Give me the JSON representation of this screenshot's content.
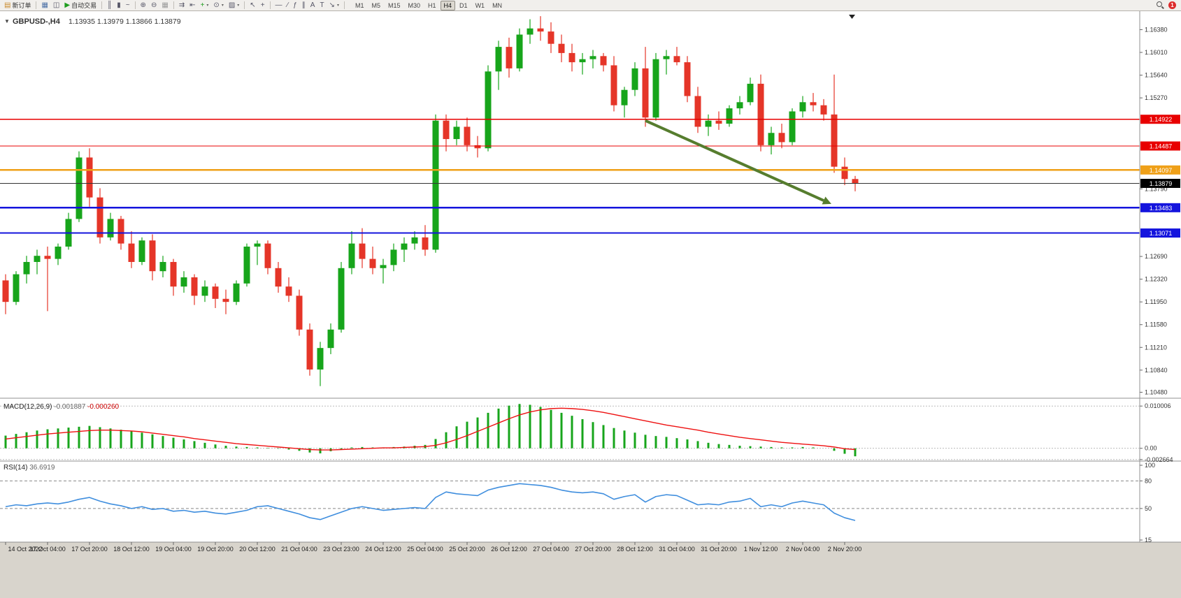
{
  "toolbar": {
    "items": [
      {
        "name": "new-order-button",
        "icon": "▤",
        "icon_color": "#c98a2b",
        "label": "新订单"
      },
      {
        "sep": true
      },
      {
        "name": "charts-window-button",
        "icon": "▦",
        "icon_color": "#4a6fa5"
      },
      {
        "name": "profiles-button",
        "icon": "◫",
        "icon_color": "#556"
      },
      {
        "name": "auto-trading-button",
        "icon": "▶",
        "icon_color": "#1f9d1f",
        "label": "自动交易"
      },
      {
        "sep": true
      },
      {
        "name": "bar-chart-type-button",
        "icon": "║",
        "icon_color": "#556"
      },
      {
        "name": "candle-chart-type-button",
        "icon": "▮",
        "icon_color": "#556"
      },
      {
        "name": "line-chart-type-button",
        "icon": "~",
        "icon_color": "#556"
      },
      {
        "sep": true
      },
      {
        "name": "zoom-in-button",
        "icon": "⊕",
        "icon_color": "#556"
      },
      {
        "name": "zoom-out-button",
        "icon": "⊖",
        "icon_color": "#556"
      },
      {
        "name": "grid-button",
        "icon": "▦",
        "icon_color": "#999"
      },
      {
        "sep": true
      },
      {
        "name": "auto-scroll-button",
        "icon": "⇉",
        "icon_color": "#556"
      },
      {
        "name": "chart-shift-button",
        "icon": "⇤",
        "icon_color": "#556"
      },
      {
        "name": "indicators-button",
        "icon": "+",
        "icon_color": "#1f9d1f",
        "caret": true
      },
      {
        "name": "periods-button",
        "icon": "⊙",
        "icon_color": "#556",
        "caret": true
      },
      {
        "name": "template-button",
        "icon": "▨",
        "icon_color": "#556",
        "caret": true
      },
      {
        "sep": true
      },
      {
        "name": "cursor-button",
        "icon": "↖",
        "icon_color": "#556"
      },
      {
        "name": "crosshair-button",
        "icon": "+",
        "icon_color": "#556"
      },
      {
        "sep": true
      },
      {
        "name": "hline-tool-button",
        "icon": "—",
        "icon_color": "#556"
      },
      {
        "name": "trendline-tool-button",
        "icon": "∕",
        "icon_color": "#556"
      },
      {
        "name": "fibo-tool-button",
        "icon": "ƒ",
        "icon_color": "#556"
      },
      {
        "name": "channel-tool-button",
        "icon": "∥",
        "icon_color": "#556"
      },
      {
        "name": "text-tool-button",
        "icon": "A",
        "icon_color": "#556"
      },
      {
        "name": "label-tool-button",
        "icon": "T",
        "icon_color": "#556"
      },
      {
        "name": "arrows-tool-button",
        "icon": "↘",
        "icon_color": "#556",
        "caret": true
      },
      {
        "sep": true
      }
    ],
    "timeframes": {
      "options": [
        "M1",
        "M5",
        "M15",
        "M30",
        "H1",
        "H4",
        "D1",
        "W1",
        "MN"
      ],
      "active": "H4"
    },
    "notification_count": "1"
  },
  "chart_data": [
    {
      "type": "candlestick",
      "title": "GBPUSD-,H4",
      "ohlc_text": "1.13935 1.13979 1.13866 1.13879",
      "timeframe": "H4",
      "ylim": [
        1.1044,
        1.1659
      ],
      "y_ticks": [
        "1.16380",
        "1.16010",
        "1.15640",
        "1.15270",
        "1.13790",
        "1.12690",
        "1.12320",
        "1.11950",
        "1.11580",
        "1.11210",
        "1.10840",
        "1.10480"
      ],
      "x_labels": [
        "14 Oct 2022",
        "17 Oct 04:00",
        "17 Oct 20:00",
        "18 Oct 12:00",
        "19 Oct 04:00",
        "19 Oct 20:00",
        "20 Oct 12:00",
        "21 Oct 04:00",
        "23 Oct 23:00",
        "24 Oct 12:00",
        "25 Oct 04:00",
        "25 Oct 20:00",
        "26 Oct 12:00",
        "27 Oct 04:00",
        "27 Oct 20:00",
        "28 Oct 12:00",
        "31 Oct 04:00",
        "31 Oct 20:00",
        "1 Nov 12:00",
        "2 Nov 04:00",
        "2 Nov 20:00"
      ],
      "colors": {
        "up": "#17a51b",
        "down": "#e53528"
      },
      "current_price": {
        "value": 1.13879,
        "label": "1.13879",
        "color": "#000000"
      },
      "levels": [
        {
          "price": 1.14922,
          "label": "1.14922",
          "color": "#e80000",
          "width": 1.3
        },
        {
          "price": 1.14487,
          "label": "1.14487",
          "color": "#e80000",
          "width": 1.3
        },
        {
          "price": 1.14097,
          "label": "1.14097",
          "color": "#efa018",
          "width": 2.2
        },
        {
          "price": 1.13483,
          "label": "1.13483",
          "color": "#1414dd",
          "width": 2.2
        },
        {
          "price": 1.13071,
          "label": "1.13071",
          "color": "#1414dd",
          "width": 2.2
        }
      ],
      "annotations": [
        {
          "type": "trend-arrow",
          "from_bar": 61,
          "from_price": 1.149,
          "to_bar": 78,
          "to_price": 1.136,
          "color": "#567d2e"
        }
      ],
      "candles": [
        [
          1.123,
          1.124,
          1.1175,
          1.1195
        ],
        [
          1.1195,
          1.1245,
          1.119,
          1.124
        ],
        [
          1.124,
          1.127,
          1.1225,
          1.126
        ],
        [
          1.126,
          1.128,
          1.124,
          1.127
        ],
        [
          1.127,
          1.1285,
          1.118,
          1.1265
        ],
        [
          1.1265,
          1.129,
          1.1255,
          1.1285
        ],
        [
          1.1285,
          1.134,
          1.128,
          1.133
        ],
        [
          1.133,
          1.144,
          1.1325,
          1.143
        ],
        [
          1.143,
          1.1445,
          1.135,
          1.1365
        ],
        [
          1.1365,
          1.138,
          1.129,
          1.13
        ],
        [
          1.13,
          1.134,
          1.1295,
          1.133
        ],
        [
          1.133,
          1.1335,
          1.128,
          1.129
        ],
        [
          1.129,
          1.131,
          1.125,
          1.126
        ],
        [
          1.126,
          1.13,
          1.1255,
          1.1295
        ],
        [
          1.1295,
          1.1305,
          1.123,
          1.1245
        ],
        [
          1.1245,
          1.127,
          1.1235,
          1.126
        ],
        [
          1.126,
          1.1265,
          1.1205,
          1.122
        ],
        [
          1.122,
          1.1245,
          1.121,
          1.1235
        ],
        [
          1.1235,
          1.124,
          1.119,
          1.1205
        ],
        [
          1.1205,
          1.123,
          1.1195,
          1.122
        ],
        [
          1.122,
          1.1225,
          1.1185,
          1.12
        ],
        [
          1.12,
          1.1215,
          1.1175,
          1.1195
        ],
        [
          1.1195,
          1.123,
          1.119,
          1.1225
        ],
        [
          1.1225,
          1.129,
          1.122,
          1.1285
        ],
        [
          1.1285,
          1.1295,
          1.1255,
          1.129
        ],
        [
          1.129,
          1.1295,
          1.124,
          1.125
        ],
        [
          1.125,
          1.126,
          1.121,
          1.122
        ],
        [
          1.122,
          1.1235,
          1.1195,
          1.1205
        ],
        [
          1.1205,
          1.1215,
          1.114,
          1.115
        ],
        [
          1.115,
          1.116,
          1.1075,
          1.1085
        ],
        [
          1.1085,
          1.113,
          1.1058,
          1.112
        ],
        [
          1.112,
          1.116,
          1.111,
          1.115
        ],
        [
          1.115,
          1.126,
          1.1145,
          1.125
        ],
        [
          1.125,
          1.131,
          1.124,
          1.129
        ],
        [
          1.129,
          1.1315,
          1.125,
          1.1265
        ],
        [
          1.1265,
          1.1285,
          1.124,
          1.125
        ],
        [
          1.125,
          1.1265,
          1.1225,
          1.1255
        ],
        [
          1.1255,
          1.129,
          1.1245,
          1.128
        ],
        [
          1.128,
          1.13,
          1.126,
          1.129
        ],
        [
          1.129,
          1.131,
          1.128,
          1.13
        ],
        [
          1.13,
          1.132,
          1.127,
          1.128
        ],
        [
          1.128,
          1.15,
          1.1275,
          1.149
        ],
        [
          1.149,
          1.15,
          1.144,
          1.146
        ],
        [
          1.146,
          1.149,
          1.145,
          1.148
        ],
        [
          1.148,
          1.1495,
          1.144,
          1.145
        ],
        [
          1.145,
          1.1465,
          1.143,
          1.1445
        ],
        [
          1.1445,
          1.158,
          1.144,
          1.157
        ],
        [
          1.157,
          1.162,
          1.154,
          1.161
        ],
        [
          1.161,
          1.1625,
          1.156,
          1.1575
        ],
        [
          1.1575,
          1.164,
          1.157,
          1.163
        ],
        [
          1.163,
          1.1655,
          1.1615,
          1.164
        ],
        [
          1.164,
          1.166,
          1.162,
          1.1635
        ],
        [
          1.1635,
          1.165,
          1.16,
          1.1615
        ],
        [
          1.1615,
          1.163,
          1.1585,
          1.16
        ],
        [
          1.16,
          1.1615,
          1.157,
          1.1585
        ],
        [
          1.1585,
          1.16,
          1.1565,
          1.159
        ],
        [
          1.159,
          1.1605,
          1.1575,
          1.1595
        ],
        [
          1.1595,
          1.16,
          1.157,
          1.158
        ],
        [
          1.158,
          1.1595,
          1.1505,
          1.1515
        ],
        [
          1.1515,
          1.1545,
          1.1495,
          1.154
        ],
        [
          1.154,
          1.1585,
          1.153,
          1.1575
        ],
        [
          1.1575,
          1.161,
          1.148,
          1.1495
        ],
        [
          1.1495,
          1.16,
          1.149,
          1.159
        ],
        [
          1.159,
          1.1605,
          1.1565,
          1.1595
        ],
        [
          1.1595,
          1.161,
          1.158,
          1.1585
        ],
        [
          1.1585,
          1.1595,
          1.152,
          1.153
        ],
        [
          1.153,
          1.1545,
          1.147,
          1.148
        ],
        [
          1.148,
          1.15,
          1.1465,
          1.149
        ],
        [
          1.149,
          1.1505,
          1.1475,
          1.1485
        ],
        [
          1.1485,
          1.1515,
          1.148,
          1.151
        ],
        [
          1.151,
          1.153,
          1.15,
          1.152
        ],
        [
          1.152,
          1.156,
          1.1515,
          1.155
        ],
        [
          1.155,
          1.1565,
          1.144,
          1.145
        ],
        [
          1.145,
          1.148,
          1.1435,
          1.147
        ],
        [
          1.147,
          1.1485,
          1.1445,
          1.1455
        ],
        [
          1.1455,
          1.151,
          1.145,
          1.1505
        ],
        [
          1.1505,
          1.153,
          1.1495,
          1.152
        ],
        [
          1.152,
          1.1535,
          1.1505,
          1.1515
        ],
        [
          1.1515,
          1.1525,
          1.149,
          1.15
        ],
        [
          1.15,
          1.1565,
          1.1405,
          1.1415
        ],
        [
          1.1415,
          1.143,
          1.1385,
          1.1395
        ],
        [
          1.1395,
          1.14,
          1.1375,
          1.1388
        ]
      ]
    },
    {
      "type": "bar",
      "label": "MACD(12,26,9)",
      "value_main": "-0.001887",
      "value_signal": "-0.000260",
      "ylim": [
        -0.0027,
        0.0112
      ],
      "y_ticks": [
        "0.010006",
        "0.00",
        "-0.002664"
      ],
      "colors": {
        "histogram": "#17a51b",
        "signal": "#ee1111"
      },
      "histogram": [
        0.003,
        0.0034,
        0.0038,
        0.0042,
        0.0045,
        0.0047,
        0.0049,
        0.0051,
        0.0053,
        0.005,
        0.0047,
        0.0044,
        0.004,
        0.0037,
        0.0033,
        0.0029,
        0.0025,
        0.0021,
        0.0017,
        0.0013,
        0.0009,
        0.0006,
        0.0004,
        0.0003,
        0.0002,
        0.0001,
        -0.0001,
        -0.0003,
        -0.0006,
        -0.001,
        -0.0012,
        -0.0007,
        -0.0002,
        0.0002,
        0.0003,
        0.0002,
        0.0002,
        0.0003,
        0.0004,
        0.0006,
        0.0008,
        0.0022,
        0.0038,
        0.0052,
        0.0063,
        0.0073,
        0.0084,
        0.0094,
        0.0101,
        0.0105,
        0.0103,
        0.0098,
        0.0091,
        0.0084,
        0.0077,
        0.0069,
        0.0062,
        0.0055,
        0.0048,
        0.0042,
        0.0037,
        0.0032,
        0.0029,
        0.0027,
        0.0024,
        0.0021,
        0.0017,
        0.0013,
        0.001,
        0.0008,
        0.0006,
        0.0005,
        0.0004,
        0.0003,
        0.0002,
        0.0002,
        0.0003,
        0.0002,
        0.0,
        -0.0006,
        -0.0013,
        -0.0019
      ],
      "signal": [
        0.0022,
        0.0025,
        0.0028,
        0.0031,
        0.0034,
        0.0036,
        0.0038,
        0.004,
        0.0042,
        0.0043,
        0.0043,
        0.0042,
        0.0041,
        0.0039,
        0.0036,
        0.0033,
        0.003,
        0.0027,
        0.0023,
        0.002,
        0.0017,
        0.0014,
        0.0011,
        0.0009,
        0.0007,
        0.0005,
        0.0003,
        0.0001,
        -0.0001,
        -0.0003,
        -0.0004,
        -0.0004,
        -0.0003,
        -0.0002,
        -0.0001,
        0.0,
        0.0001,
        0.0001,
        0.0002,
        0.0003,
        0.0004,
        0.0007,
        0.0013,
        0.0021,
        0.003,
        0.004,
        0.005,
        0.006,
        0.007,
        0.0079,
        0.0086,
        0.0091,
        0.0094,
        0.0095,
        0.0094,
        0.0092,
        0.0089,
        0.0085,
        0.008,
        0.0075,
        0.007,
        0.0065,
        0.006,
        0.0055,
        0.0051,
        0.0047,
        0.0043,
        0.0038,
        0.0034,
        0.003,
        0.0026,
        0.0023,
        0.002,
        0.0017,
        0.0014,
        0.0012,
        0.001,
        0.0008,
        0.0006,
        0.0003,
        -0.0001,
        -0.0003
      ]
    },
    {
      "type": "line",
      "label": "RSI(14)",
      "value": "36.6919",
      "ylim": [
        15,
        100
      ],
      "y_ticks": [
        "100",
        "80",
        "50",
        "15"
      ],
      "levels": [
        80,
        50
      ],
      "color": "#3f8ede",
      "values": [
        52,
        54,
        53,
        55,
        56,
        55,
        57,
        60,
        62,
        58,
        55,
        53,
        50,
        52,
        49,
        50,
        47,
        48,
        46,
        47,
        45,
        44,
        46,
        48,
        52,
        53,
        50,
        47,
        44,
        40,
        38,
        42,
        46,
        50,
        52,
        50,
        48,
        49,
        50,
        51,
        50,
        62,
        68,
        66,
        65,
        64,
        70,
        73,
        75,
        77,
        76,
        75,
        73,
        70,
        68,
        67,
        68,
        66,
        60,
        63,
        65,
        57,
        63,
        65,
        64,
        59,
        54,
        55,
        54,
        57,
        58,
        61,
        52,
        54,
        52,
        56,
        58,
        56,
        54,
        45,
        40,
        37
      ]
    }
  ]
}
